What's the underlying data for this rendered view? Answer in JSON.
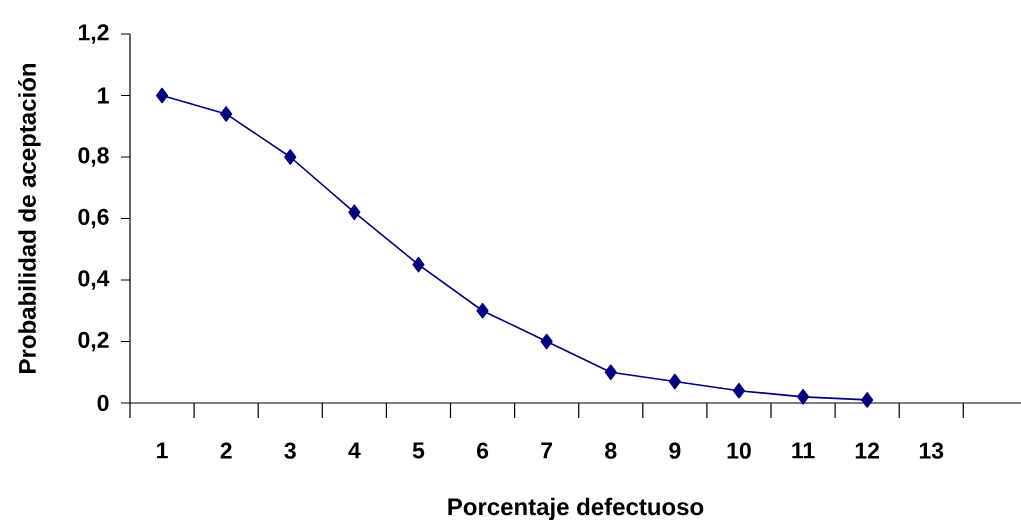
{
  "chart_data": {
    "type": "line",
    "xlabel": "Porcentaje defectuoso",
    "ylabel": "Probabilidad de aceptación",
    "categories": [
      "1",
      "2",
      "3",
      "4",
      "5",
      "6",
      "7",
      "8",
      "9",
      "10",
      "11",
      "12",
      "13",
      null
    ],
    "series": [
      {
        "color": "#000080",
        "values": [
          1,
          0.94,
          0.8,
          0.62,
          0.45,
          0.3,
          0.2,
          0.1,
          0.07,
          0.04,
          0.02,
          0.01,
          null,
          null
        ]
      }
    ],
    "ylim": [
      0,
      1.2
    ],
    "yticks": [
      0,
      {
        "value": 0.2,
        "label": "0,2"
      },
      {
        "value": 0.4,
        "label": "0,4"
      },
      {
        "value": 0.6,
        "label": "0,6"
      },
      {
        "value": 0.8,
        "label": "0,8"
      },
      1,
      {
        "value": 1.2,
        "label": "1,2"
      }
    ],
    "marker": "diamond",
    "line_style": "solid",
    "grid": false
  }
}
